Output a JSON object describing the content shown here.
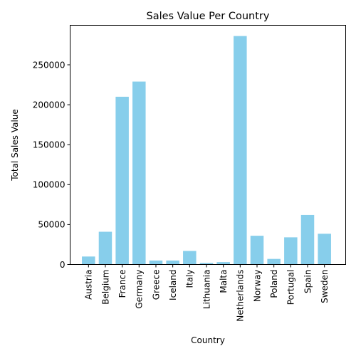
{
  "chart_data": {
    "type": "bar",
    "title": "Sales Value Per Country",
    "xlabel": "Country",
    "ylabel": "Total Sales Value",
    "categories": [
      "Austria",
      "Belgium",
      "France",
      "Germany",
      "Greece",
      "Iceland",
      "Italy",
      "Lithuania",
      "Malta",
      "Netherlands",
      "Norway",
      "Poland",
      "Portugal",
      "Spain",
      "Sweden"
    ],
    "values": [
      10000,
      41000,
      210000,
      229000,
      5000,
      5000,
      17000,
      2000,
      3000,
      286000,
      36000,
      7000,
      34000,
      62000,
      38500
    ],
    "ylim": [
      0,
      300000
    ],
    "yticks": [
      0,
      50000,
      100000,
      150000,
      200000,
      250000
    ],
    "bar_color": "#87ceeb",
    "grid": false,
    "legend": "none"
  }
}
